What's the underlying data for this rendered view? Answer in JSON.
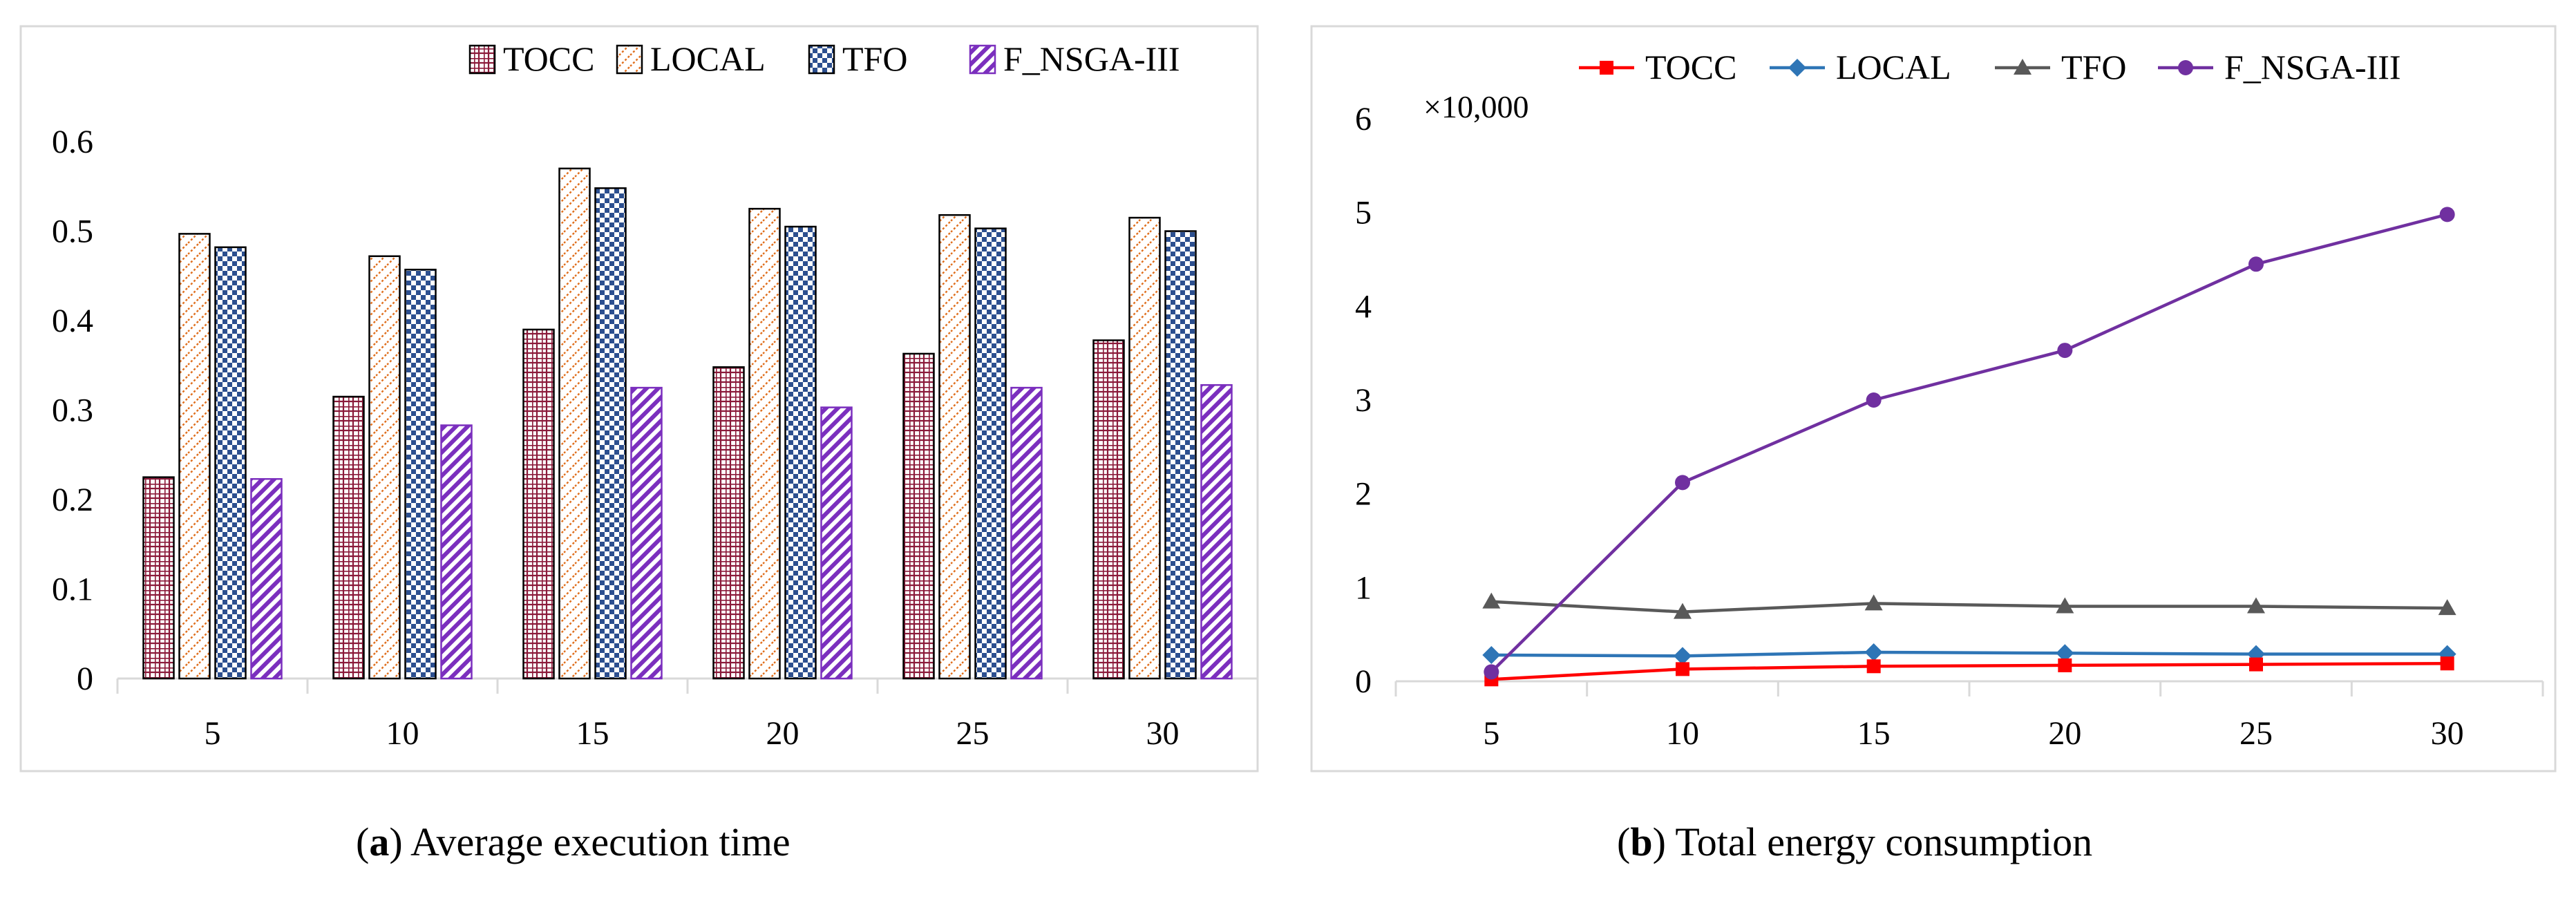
{
  "chart_data": [
    {
      "type": "bar",
      "title": "",
      "caption_label": "a",
      "caption_text": "Average execution time",
      "xlabel": "",
      "ylabel": "",
      "categories": [
        "5",
        "10",
        "15",
        "20",
        "25",
        "30"
      ],
      "ylim": [
        0,
        0.6
      ],
      "yticks": [
        "0",
        "0.1",
        "0.2",
        "0.3",
        "0.4",
        "0.5",
        "0.6"
      ],
      "legend_position": "top-right",
      "series": [
        {
          "name": "TOCC",
          "values": [
            0.225,
            0.315,
            0.39,
            0.348,
            0.363,
            0.378
          ],
          "color": "#8b1a3a",
          "pattern": "grid"
        },
        {
          "name": "LOCAL",
          "values": [
            0.497,
            0.472,
            0.57,
            0.525,
            0.518,
            0.515
          ],
          "color": "#e0701f",
          "pattern": "diagonal-dots"
        },
        {
          "name": "TFO",
          "values": [
            0.482,
            0.457,
            0.548,
            0.505,
            0.503,
            0.5
          ],
          "color": "#2c4f8f",
          "pattern": "checker"
        },
        {
          "name": "F_NSGA-III",
          "values": [
            0.223,
            0.283,
            0.325,
            0.303,
            0.325,
            0.328
          ],
          "color": "#7b2fbe",
          "pattern": "diagonal-stripes"
        }
      ]
    },
    {
      "type": "line",
      "title": "",
      "caption_label": "b",
      "caption_text": "Total energy consumption",
      "xlabel": "",
      "ylabel": "",
      "y_multiplier_label": "×10,000",
      "x": [
        "5",
        "10",
        "15",
        "20",
        "25",
        "30"
      ],
      "ylim": [
        0,
        6
      ],
      "yticks": [
        "0",
        "1",
        "2",
        "3",
        "4",
        "5",
        "6"
      ],
      "legend_position": "top",
      "series": [
        {
          "name": "TOCC",
          "values": [
            0.02,
            0.13,
            0.16,
            0.17,
            0.18,
            0.19
          ],
          "color": "#ff0000",
          "marker": "square"
        },
        {
          "name": "LOCAL",
          "values": [
            0.28,
            0.27,
            0.31,
            0.3,
            0.29,
            0.29
          ],
          "color": "#2e75b6",
          "marker": "diamond"
        },
        {
          "name": "TFO",
          "values": [
            0.85,
            0.74,
            0.83,
            0.8,
            0.8,
            0.78
          ],
          "color": "#595959",
          "marker": "triangle"
        },
        {
          "name": "F_NSGA-III",
          "values": [
            0.1,
            2.12,
            3.0,
            3.53,
            4.45,
            4.98
          ],
          "color": "#7030a0",
          "marker": "circle"
        }
      ]
    }
  ]
}
